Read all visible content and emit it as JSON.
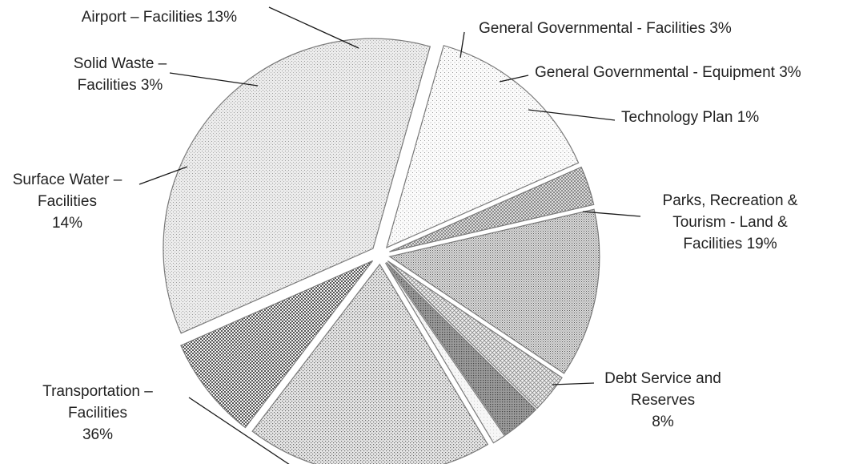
{
  "chart_data": {
    "type": "pie",
    "title": "",
    "slices": [
      {
        "label": [
          "Airport – Facilities  13%"
        ],
        "value": 13,
        "pattern": "dense-dots"
      },
      {
        "label": [
          "General Governmental - Facilities  3%"
        ],
        "value": 3,
        "pattern": "crosshatch-light"
      },
      {
        "label": [
          "General Governmental - Equipment  3%"
        ],
        "value": 3,
        "pattern": "dark-dots"
      },
      {
        "label": [
          "Technology Plan  1%"
        ],
        "value": 1,
        "pattern": "plain-light"
      },
      {
        "label": [
          "Parks, Recreation &",
          "Tourism - Land &",
          "Facilities  19%"
        ],
        "value": 19,
        "pattern": "medium-dots"
      },
      {
        "label": [
          "Debt Service and",
          "Reserves",
          "8%"
        ],
        "value": 8,
        "pattern": "checker"
      },
      {
        "label": [
          "Transportation –",
          "Facilities",
          "36%"
        ],
        "value": 36,
        "pattern": "light-fine-dots"
      },
      {
        "label": [
          "Surface Water –",
          "Facilities",
          "14%"
        ],
        "value": 14,
        "pattern": "sparse-dots"
      },
      {
        "label": [
          "Solid Waste –",
          "Facilities  3%"
        ],
        "value": 3,
        "pattern": "crosshatch"
      }
    ],
    "colors": {
      "outline": "#7a7a7a",
      "text": "#222222",
      "leader": "#1a1a1a"
    }
  }
}
